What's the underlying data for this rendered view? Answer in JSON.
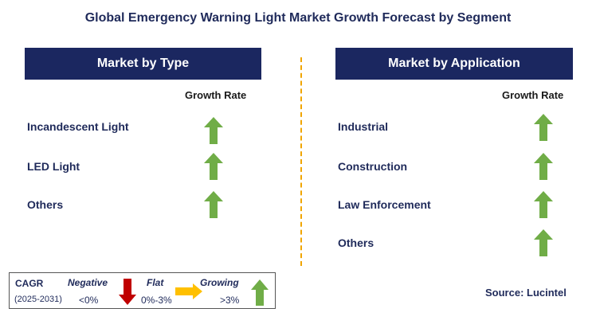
{
  "title": "Global Emergency Warning Light Market Growth Forecast by Segment",
  "left_panel": {
    "header": "Market by Type",
    "growth_label": "Growth Rate",
    "items": [
      {
        "label": "Incandescent Light",
        "trend": "growing"
      },
      {
        "label": "LED Light",
        "trend": "growing"
      },
      {
        "label": "Others",
        "trend": "growing"
      }
    ]
  },
  "right_panel": {
    "header": "Market by Application",
    "growth_label": "Growth Rate",
    "items": [
      {
        "label": "Industrial",
        "trend": "growing"
      },
      {
        "label": "Construction",
        "trend": "growing"
      },
      {
        "label": "Law Enforcement",
        "trend": "growing"
      },
      {
        "label": "Others",
        "trend": "growing"
      }
    ]
  },
  "legend": {
    "cagr": "CAGR",
    "period": "(2025-2031)",
    "negative": {
      "label": "Negative",
      "range": "<0%",
      "icon": "red-down-arrow-icon",
      "color": "#c00000"
    },
    "flat": {
      "label": "Flat",
      "range": "0%-3%",
      "icon": "yellow-right-arrow-icon",
      "color": "#ffc000"
    },
    "growing": {
      "label": "Growing",
      "range": ">3%",
      "icon": "green-up-arrow-icon",
      "color": "#70ad47"
    }
  },
  "source": "Source: Lucintel",
  "colors": {
    "header_bg": "#1b2760",
    "divider": "#f0a500",
    "text": "#1f2a5a"
  }
}
